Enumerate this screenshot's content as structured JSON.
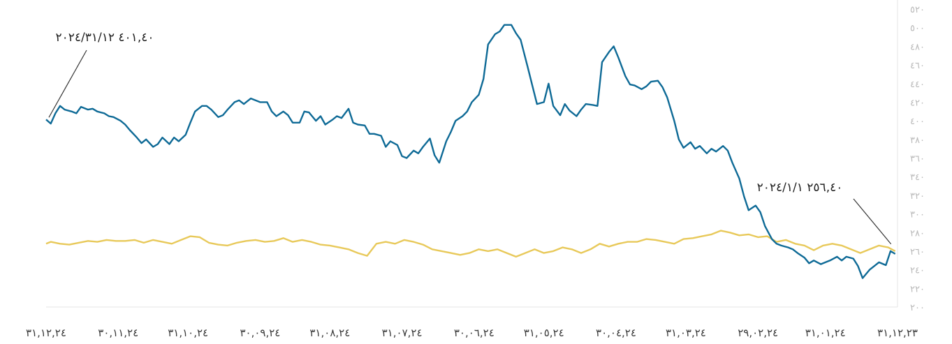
{
  "chart_data": {
    "type": "line",
    "title": "",
    "xlabel": "",
    "ylabel": "",
    "grid": false,
    "x_reversed": true,
    "ylim": [
      200,
      520
    ],
    "y_ticks": [
      {
        "value": 520,
        "label": "٥٢٠"
      },
      {
        "value": 500,
        "label": "٥٠٠"
      },
      {
        "value": 480,
        "label": "٤٨٠"
      },
      {
        "value": 460,
        "label": "٤٦٠"
      },
      {
        "value": 440,
        "label": "٤٤٠"
      },
      {
        "value": 420,
        "label": "٤٢٠"
      },
      {
        "value": 400,
        "label": "٤٠٠"
      },
      {
        "value": 380,
        "label": "٣٨٠"
      },
      {
        "value": 360,
        "label": "٣٦٠"
      },
      {
        "value": 340,
        "label": "٣٤٠"
      },
      {
        "value": 320,
        "label": "٣٢٠"
      },
      {
        "value": 300,
        "label": "٣٠٠"
      },
      {
        "value": 280,
        "label": "٢٨٠"
      },
      {
        "value": 260,
        "label": "٢٦٠"
      },
      {
        "value": 240,
        "label": "٢٤٠"
      },
      {
        "value": 220,
        "label": "٢٢٠"
      },
      {
        "value": 200,
        "label": "٢٠٠"
      }
    ],
    "x_ticks": [
      {
        "date": "2023-12-31",
        "label": "٣١,١٢,٢٣"
      },
      {
        "date": "2024-01-31",
        "label": "٣١,٠١,٢٤"
      },
      {
        "date": "2024-02-29",
        "label": "٢٩,٠٢,٢٤"
      },
      {
        "date": "2024-03-31",
        "label": "٣١,٠٣,٢٤"
      },
      {
        "date": "2024-04-30",
        "label": "٣٠,٠٤,٢٤"
      },
      {
        "date": "2024-05-31",
        "label": "٣١,٠٥,٢٤"
      },
      {
        "date": "2024-06-30",
        "label": "٣٠,٠٦,٢٤"
      },
      {
        "date": "2024-07-31",
        "label": "٣١,٠٧,٢٤"
      },
      {
        "date": "2024-08-31",
        "label": "٣١,٠٨,٢٤"
      },
      {
        "date": "2024-09-30",
        "label": "٣٠,٠٩,٢٤"
      },
      {
        "date": "2024-10-31",
        "label": "٣١,١٠,٢٤"
      },
      {
        "date": "2024-11-30",
        "label": "٣٠,١١,٢٤"
      },
      {
        "date": "2024-12-31",
        "label": "٣١,١٢,٢٤"
      }
    ],
    "annotations": [
      {
        "text": "٤٠١,٤٠  ٢٠٢٤/٣١/١٢",
        "date": "2024-12-31",
        "value": 401.4
      },
      {
        "text": "٢٥٦,٤٠  ٢٠٢٤/١/١",
        "date": "2024-01-01",
        "value": 256.4
      }
    ],
    "series": [
      {
        "color": "#0e6a96",
        "points": [
          [
            "2024-01-01",
            257
          ],
          [
            "2024-01-03",
            260
          ],
          [
            "2024-01-05",
            245
          ],
          [
            "2024-01-08",
            248
          ],
          [
            "2024-01-10",
            244
          ],
          [
            "2024-01-12",
            240
          ],
          [
            "2024-01-15",
            231
          ],
          [
            "2024-01-17",
            244
          ],
          [
            "2024-01-19",
            252
          ],
          [
            "2024-01-22",
            254
          ],
          [
            "2024-01-24",
            250
          ],
          [
            "2024-01-26",
            254
          ],
          [
            "2024-01-29",
            250
          ],
          [
            "2024-01-31",
            248
          ],
          [
            "2024-02-02",
            246
          ],
          [
            "2024-02-05",
            250
          ],
          [
            "2024-02-07",
            247
          ],
          [
            "2024-02-09",
            253
          ],
          [
            "2024-02-12",
            258
          ],
          [
            "2024-02-14",
            262
          ],
          [
            "2024-02-16",
            264
          ],
          [
            "2024-02-19",
            266
          ],
          [
            "2024-02-21",
            268
          ],
          [
            "2024-02-23",
            273
          ],
          [
            "2024-02-26",
            287
          ],
          [
            "2024-02-28",
            302
          ],
          [
            "2024-03-01",
            309
          ],
          [
            "2024-03-04",
            304
          ],
          [
            "2024-03-06",
            319
          ],
          [
            "2024-03-08",
            338
          ],
          [
            "2024-03-11",
            355
          ],
          [
            "2024-03-13",
            368
          ],
          [
            "2024-03-15",
            373
          ],
          [
            "2024-03-18",
            367
          ],
          [
            "2024-03-20",
            370
          ],
          [
            "2024-03-22",
            365
          ],
          [
            "2024-03-25",
            373
          ],
          [
            "2024-03-27",
            370
          ],
          [
            "2024-03-29",
            377
          ],
          [
            "2024-04-01",
            371
          ],
          [
            "2024-04-03",
            380
          ],
          [
            "2024-04-05",
            400
          ],
          [
            "2024-04-08",
            425
          ],
          [
            "2024-04-10",
            436
          ],
          [
            "2024-04-12",
            443
          ],
          [
            "2024-04-15",
            442
          ],
          [
            "2024-04-17",
            437
          ],
          [
            "2024-04-19",
            434
          ],
          [
            "2024-04-22",
            438
          ],
          [
            "2024-04-24",
            439
          ],
          [
            "2024-04-26",
            448
          ],
          [
            "2024-04-29",
            468
          ],
          [
            "2024-05-01",
            480
          ],
          [
            "2024-05-03",
            474
          ],
          [
            "2024-05-06",
            463
          ],
          [
            "2024-05-08",
            416
          ],
          [
            "2024-05-10",
            417
          ],
          [
            "2024-05-13",
            418
          ],
          [
            "2024-05-15",
            412
          ],
          [
            "2024-05-17",
            405
          ],
          [
            "2024-05-20",
            411
          ],
          [
            "2024-05-22",
            418
          ],
          [
            "2024-05-24",
            406
          ],
          [
            "2024-05-27",
            416
          ],
          [
            "2024-05-29",
            440
          ],
          [
            "2024-05-31",
            420
          ],
          [
            "2024-06-03",
            418
          ],
          [
            "2024-06-05",
            438
          ],
          [
            "2024-06-07",
            458
          ],
          [
            "2024-06-10",
            487
          ],
          [
            "2024-06-12",
            494
          ],
          [
            "2024-06-14",
            503
          ],
          [
            "2024-06-17",
            503
          ],
          [
            "2024-06-19",
            496
          ],
          [
            "2024-06-21",
            493
          ],
          [
            "2024-06-24",
            482
          ],
          [
            "2024-06-26",
            445
          ],
          [
            "2024-06-28",
            428
          ],
          [
            "2024-07-01",
            420
          ],
          [
            "2024-07-03",
            410
          ],
          [
            "2024-07-05",
            405
          ],
          [
            "2024-07-08",
            400
          ],
          [
            "2024-07-10",
            388
          ],
          [
            "2024-07-12",
            378
          ],
          [
            "2024-07-15",
            355
          ],
          [
            "2024-07-17",
            363
          ],
          [
            "2024-07-19",
            381
          ],
          [
            "2024-07-22",
            372
          ],
          [
            "2024-07-24",
            365
          ],
          [
            "2024-07-26",
            368
          ],
          [
            "2024-07-29",
            360
          ],
          [
            "2024-07-31",
            362
          ],
          [
            "2024-08-02",
            374
          ],
          [
            "2024-08-05",
            378
          ],
          [
            "2024-08-07",
            372
          ],
          [
            "2024-08-09",
            384
          ],
          [
            "2024-08-12",
            386
          ],
          [
            "2024-08-14",
            386
          ],
          [
            "2024-08-16",
            395
          ],
          [
            "2024-08-19",
            396
          ],
          [
            "2024-08-21",
            398
          ],
          [
            "2024-08-23",
            413
          ],
          [
            "2024-08-26",
            403
          ],
          [
            "2024-08-28",
            405
          ],
          [
            "2024-08-30",
            401
          ],
          [
            "2024-09-02",
            396
          ],
          [
            "2024-09-04",
            405
          ],
          [
            "2024-09-06",
            400
          ],
          [
            "2024-09-09",
            409
          ],
          [
            "2024-09-11",
            410
          ],
          [
            "2024-09-13",
            398
          ],
          [
            "2024-09-16",
            398
          ],
          [
            "2024-09-18",
            406
          ],
          [
            "2024-09-20",
            410
          ],
          [
            "2024-09-23",
            405
          ],
          [
            "2024-09-25",
            410
          ],
          [
            "2024-09-27",
            420
          ],
          [
            "2024-09-30",
            420
          ],
          [
            "2024-10-02",
            422
          ],
          [
            "2024-10-04",
            424
          ],
          [
            "2024-10-07",
            418
          ],
          [
            "2024-10-09",
            422
          ],
          [
            "2024-10-11",
            420
          ],
          [
            "2024-10-14",
            412
          ],
          [
            "2024-10-16",
            406
          ],
          [
            "2024-10-18",
            404
          ],
          [
            "2024-10-21",
            412
          ],
          [
            "2024-10-23",
            416
          ],
          [
            "2024-10-25",
            416
          ],
          [
            "2024-10-28",
            410
          ],
          [
            "2024-10-30",
            398
          ],
          [
            "2024-11-01",
            385
          ],
          [
            "2024-11-04",
            378
          ],
          [
            "2024-11-06",
            382
          ],
          [
            "2024-11-08",
            375
          ],
          [
            "2024-11-11",
            382
          ],
          [
            "2024-11-13",
            375
          ],
          [
            "2024-11-15",
            372
          ],
          [
            "2024-11-18",
            380
          ],
          [
            "2024-11-20",
            376
          ],
          [
            "2024-11-22",
            382
          ],
          [
            "2024-11-25",
            390
          ],
          [
            "2024-11-27",
            396
          ],
          [
            "2024-11-29",
            400
          ],
          [
            "2024-12-02",
            404
          ],
          [
            "2024-12-04",
            405
          ],
          [
            "2024-12-06",
            408
          ],
          [
            "2024-12-09",
            410
          ],
          [
            "2024-12-11",
            413
          ],
          [
            "2024-12-13",
            412
          ],
          [
            "2024-12-16",
            415
          ],
          [
            "2024-12-18",
            408
          ],
          [
            "2024-12-20",
            410
          ],
          [
            "2024-12-23",
            412
          ],
          [
            "2024-12-25",
            416
          ],
          [
            "2024-12-27",
            408
          ],
          [
            "2024-12-29",
            397
          ],
          [
            "2024-12-31",
            401.4
          ]
        ]
      },
      {
        "color": "#e8c95a",
        "points": [
          [
            "2024-01-01",
            260
          ],
          [
            "2024-01-04",
            264
          ],
          [
            "2024-01-08",
            266
          ],
          [
            "2024-01-12",
            262
          ],
          [
            "2024-01-16",
            258
          ],
          [
            "2024-01-20",
            262
          ],
          [
            "2024-01-24",
            266
          ],
          [
            "2024-01-28",
            268
          ],
          [
            "2024-02-01",
            266
          ],
          [
            "2024-02-05",
            261
          ],
          [
            "2024-02-09",
            266
          ],
          [
            "2024-02-13",
            268
          ],
          [
            "2024-02-17",
            272
          ],
          [
            "2024-02-21",
            270
          ],
          [
            "2024-02-25",
            276
          ],
          [
            "2024-02-29",
            275
          ],
          [
            "2024-03-04",
            278
          ],
          [
            "2024-03-08",
            277
          ],
          [
            "2024-03-12",
            280
          ],
          [
            "2024-03-16",
            282
          ],
          [
            "2024-03-20",
            278
          ],
          [
            "2024-03-24",
            276
          ],
          [
            "2024-03-28",
            274
          ],
          [
            "2024-04-01",
            273
          ],
          [
            "2024-04-05",
            268
          ],
          [
            "2024-04-09",
            270
          ],
          [
            "2024-04-13",
            272
          ],
          [
            "2024-04-17",
            273
          ],
          [
            "2024-04-21",
            270
          ],
          [
            "2024-04-25",
            270
          ],
          [
            "2024-04-29",
            268
          ],
          [
            "2024-05-03",
            265
          ],
          [
            "2024-05-07",
            268
          ],
          [
            "2024-05-11",
            262
          ],
          [
            "2024-05-15",
            258
          ],
          [
            "2024-05-19",
            262
          ],
          [
            "2024-05-23",
            264
          ],
          [
            "2024-05-27",
            260
          ],
          [
            "2024-05-31",
            258
          ],
          [
            "2024-06-04",
            262
          ],
          [
            "2024-06-08",
            258
          ],
          [
            "2024-06-12",
            254
          ],
          [
            "2024-06-16",
            258
          ],
          [
            "2024-06-20",
            262
          ],
          [
            "2024-06-24",
            260
          ],
          [
            "2024-06-28",
            262
          ],
          [
            "2024-07-02",
            258
          ],
          [
            "2024-07-06",
            256
          ],
          [
            "2024-07-10",
            258
          ],
          [
            "2024-07-14",
            260
          ],
          [
            "2024-07-18",
            262
          ],
          [
            "2024-07-22",
            267
          ],
          [
            "2024-07-26",
            270
          ],
          [
            "2024-07-30",
            272
          ],
          [
            "2024-08-03",
            268
          ],
          [
            "2024-08-07",
            270
          ],
          [
            "2024-08-11",
            268
          ],
          [
            "2024-08-15",
            255
          ],
          [
            "2024-08-19",
            258
          ],
          [
            "2024-08-23",
            262
          ],
          [
            "2024-08-27",
            264
          ],
          [
            "2024-08-31",
            266
          ],
          [
            "2024-09-04",
            267
          ],
          [
            "2024-09-08",
            270
          ],
          [
            "2024-09-12",
            272
          ],
          [
            "2024-09-16",
            270
          ],
          [
            "2024-09-20",
            274
          ],
          [
            "2024-09-24",
            271
          ],
          [
            "2024-09-28",
            270
          ],
          [
            "2024-10-02",
            272
          ],
          [
            "2024-10-06",
            271
          ],
          [
            "2024-10-10",
            269
          ],
          [
            "2024-10-14",
            266
          ],
          [
            "2024-10-18",
            267
          ],
          [
            "2024-10-22",
            269
          ],
          [
            "2024-10-26",
            275
          ],
          [
            "2024-10-30",
            276
          ],
          [
            "2024-11-03",
            272
          ],
          [
            "2024-11-07",
            268
          ],
          [
            "2024-11-11",
            270
          ],
          [
            "2024-11-15",
            272
          ],
          [
            "2024-11-19",
            269
          ],
          [
            "2024-11-23",
            272
          ],
          [
            "2024-11-27",
            271
          ],
          [
            "2024-12-01",
            271
          ],
          [
            "2024-12-05",
            272
          ],
          [
            "2024-12-09",
            270
          ],
          [
            "2024-12-13",
            271
          ],
          [
            "2024-12-17",
            269
          ],
          [
            "2024-12-21",
            267
          ],
          [
            "2024-12-25",
            268
          ],
          [
            "2024-12-29",
            270
          ],
          [
            "2024-12-31",
            268
          ]
        ]
      }
    ]
  }
}
